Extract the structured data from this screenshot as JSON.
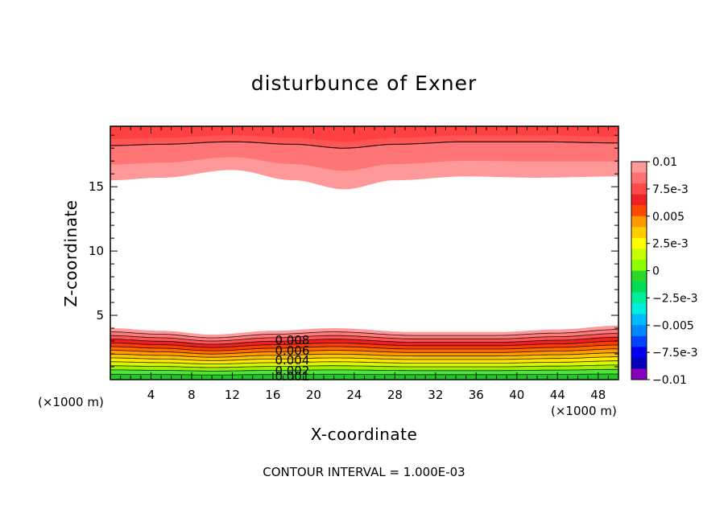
{
  "chart_data": {
    "type": "heatmap",
    "title": "disturbunce of Exner",
    "xlabel": "X-coordinate",
    "ylabel": "Z-coordinate",
    "x_unit_label_left": "(×1000 m)",
    "x_unit_label_right": "(×1000 m)",
    "xlim": [
      0,
      50
    ],
    "ylim": [
      0,
      19.7
    ],
    "x_ticks": [
      4,
      8,
      12,
      16,
      20,
      24,
      28,
      32,
      36,
      40,
      44,
      48
    ],
    "x_tick_labels": [
      "4",
      "8",
      "12",
      "16",
      "20",
      "24",
      "28",
      "32",
      "36",
      "40",
      "44",
      "48"
    ],
    "y_ticks": [
      5,
      10,
      15
    ],
    "y_tick_labels": [
      "5",
      "10",
      "15"
    ],
    "colorbar": {
      "min": -0.01,
      "max": 0.01,
      "labels": [
        "0.01",
        "7.5e-3",
        "0.005",
        "2.5e-3",
        "0",
        "−2.5e-3",
        "−0.005",
        "−7.5e-3",
        "−0.01"
      ],
      "colors": [
        "#ff9999",
        "#ff7070",
        "#ff4a4a",
        "#ee2222",
        "#ff4800",
        "#ff9900",
        "#ffcc00",
        "#ffff00",
        "#c8ff00",
        "#8cff00",
        "#2bd92b",
        "#00dd55",
        "#00ee99",
        "#00eedd",
        "#00bbff",
        "#0088ff",
        "#0044ff",
        "#0000ee",
        "#0000bb",
        "#8800bb"
      ]
    },
    "contour_labels": [
      "0.008",
      "0.006",
      "0.004",
      "0.002",
      "0.001"
    ],
    "contour_interval_note": "CONTOUR INTERVAL = 1.000E-03",
    "upper_band": {
      "x": [
        0,
        5,
        12,
        18,
        23,
        28,
        35,
        42,
        50
      ],
      "base_z": [
        15.5,
        15.7,
        16.3,
        15.5,
        14.8,
        15.5,
        15.8,
        15.7,
        15.8
      ],
      "ceiling_z": [
        19.7,
        19.7,
        19.7,
        19.7,
        19.7,
        19.7,
        19.7,
        19.7,
        19.7
      ],
      "contour_z": [
        18.2,
        18.3,
        18.5,
        18.3,
        18.0,
        18.3,
        18.5,
        18.5,
        18.4
      ]
    },
    "lower_band": {
      "x": [
        0,
        5,
        10,
        16,
        22,
        30,
        38,
        44,
        50
      ],
      "top_z": [
        4.0,
        3.8,
        3.5,
        3.8,
        4.0,
        3.7,
        3.7,
        3.9,
        4.2
      ],
      "contour_z": [
        1.2,
        1.05,
        0.9,
        0.95,
        1.0,
        0.95,
        0.9,
        1.0,
        1.1
      ]
    }
  }
}
